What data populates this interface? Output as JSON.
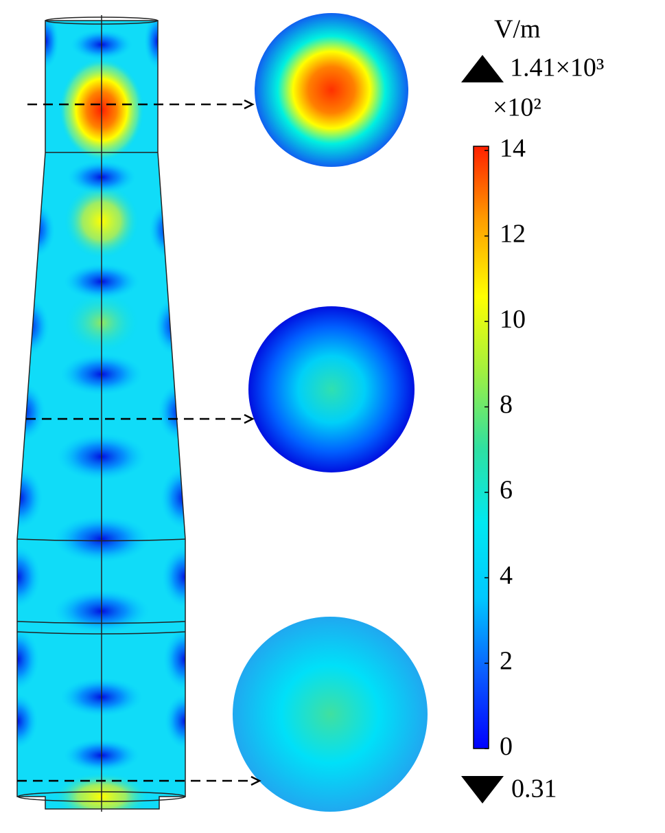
{
  "chart_data": {
    "type": "colorbar",
    "unit": "V/m",
    "max_label": "1.41×10³",
    "multiplier": "×10²",
    "min_label": "0.31",
    "ylim": [
      0.0031,
      14.1
    ],
    "yticks": [
      0,
      2,
      4,
      6,
      8,
      10,
      12,
      14
    ],
    "colormap": [
      "#0000ff",
      "#0a5cff",
      "#00c8ff",
      "#00e8f0",
      "#30e0a0",
      "#a0f040",
      "#ffff00",
      "#ffa000",
      "#ff2000"
    ]
  }
}
